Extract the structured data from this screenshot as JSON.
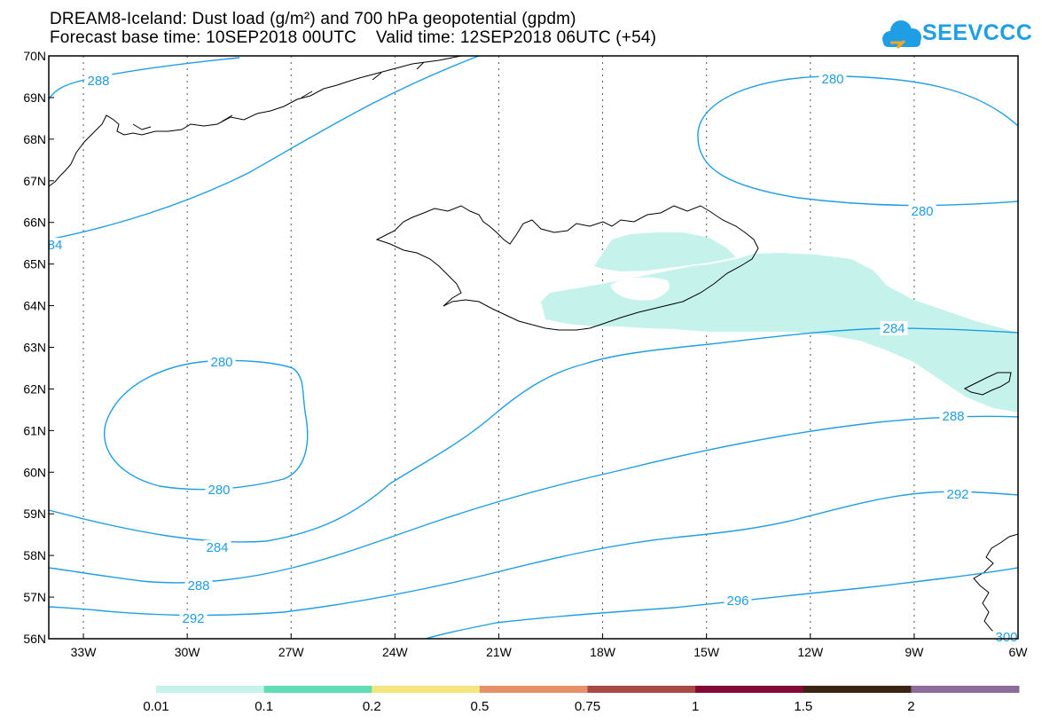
{
  "header": {
    "title_line1": "DREAM8-Iceland: Dust load (g/m²) and 700 hPa geopotential (gpdm)",
    "title_line2": "Forecast base time: 10SEP2018 00UTC    Valid time: 12SEP2018 06UTC (+54)"
  },
  "logo": {
    "text": "SEEVCCC",
    "icon": "cloud-icon",
    "color": "#1f9ee5"
  },
  "map": {
    "lat_labels": [
      "56N",
      "57N",
      "58N",
      "59N",
      "60N",
      "61N",
      "62N",
      "63N",
      "64N",
      "65N",
      "66N",
      "67N",
      "68N",
      "69N",
      "70N"
    ],
    "lon_labels": [
      "33W",
      "30W",
      "27W",
      "24W",
      "21W",
      "18W",
      "15W",
      "12W",
      "9W",
      "6W"
    ],
    "contour_color": "#1f9ee5",
    "dust_color": "#c6f2ec",
    "contour_labels": {
      "c288_top": "288",
      "c284_left": "84",
      "c280_ne_top": "280",
      "c280_ne_bottom": "280",
      "c280_w_top": "280",
      "c280_w_bottom": "280",
      "c284_lower": "284",
      "c288_lower": "288",
      "c292_lower": "292",
      "c284_east": "284",
      "c288_east": "288",
      "c292_east": "292",
      "c296": "296",
      "c300": "300"
    }
  },
  "colorbar": {
    "colors": [
      "#c6f2ec",
      "#5fddb4",
      "#f5e57a",
      "#e59068",
      "#a84a44",
      "#820a35",
      "#3b2414",
      "#8c6c9c"
    ],
    "labels": [
      "0.01",
      "0.1",
      "0.2",
      "0.5",
      "0.75",
      "1",
      "1.5",
      "2"
    ]
  }
}
